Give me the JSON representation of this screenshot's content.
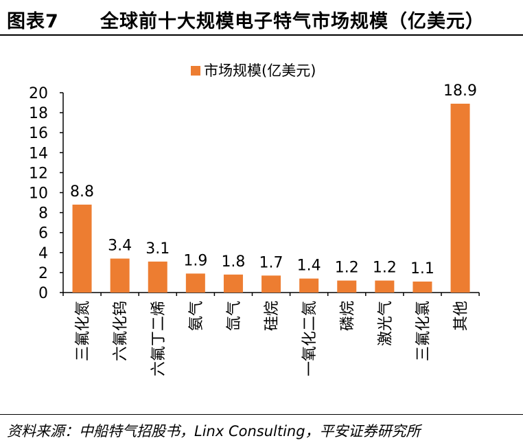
{
  "header": {
    "figure_label": "图表7",
    "title": "全球前十大规模电子特气市场规模（亿美元）"
  },
  "footer": {
    "source": "资料来源：中船特气招股书，Linx Consulting，平安证券研究所"
  },
  "chart_data": {
    "type": "bar",
    "title": "",
    "xlabel": "",
    "ylabel": "",
    "ylim": [
      0,
      20
    ],
    "yticks": [
      "0",
      "2",
      "4",
      "6",
      "8",
      "10",
      "12",
      "14",
      "16",
      "18",
      "20"
    ],
    "grid": false,
    "legend_position": "top-center",
    "categories": [
      "三氟化氮",
      "六氟化钨",
      "六氟丁二烯",
      "氨气",
      "氙气",
      "硅烷",
      "一氧化二氮",
      "磷烷",
      "激光气",
      "三氟化氯",
      "其他"
    ],
    "series": [
      {
        "name": "市场规模(亿美元)",
        "color": "#ED7D31",
        "values": [
          8.8,
          3.4,
          3.1,
          1.9,
          1.8,
          1.7,
          1.4,
          1.2,
          1.2,
          1.1,
          18.9
        ],
        "value_labels": [
          "8.8",
          "3.4",
          "3.1",
          "1.9",
          "1.8",
          "1.7",
          "1.4",
          "1.2",
          "1.2",
          "1.1",
          "18.9"
        ]
      }
    ]
  }
}
